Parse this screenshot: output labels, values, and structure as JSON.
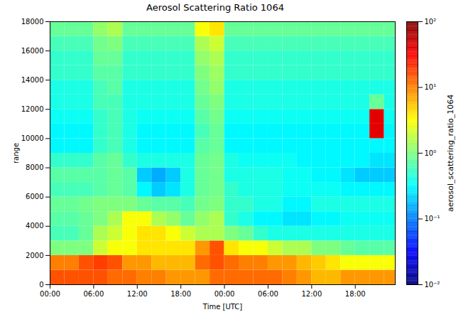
{
  "chart_data": {
    "type": "heatmap",
    "title": "Aerosol Scattering Ratio 1064",
    "x_label": "Time [UTC]",
    "y_label": "range",
    "xlim": [
      0,
      47.5
    ],
    "xticks": [
      {
        "value": 0,
        "label": "00:00"
      },
      {
        "value": 6,
        "label": "06:00"
      },
      {
        "value": 12,
        "label": "12:00"
      },
      {
        "value": 18,
        "label": "18:00"
      },
      {
        "value": 24,
        "label": "00:00"
      },
      {
        "value": 30,
        "label": "06:00"
      },
      {
        "value": 36,
        "label": "12:00"
      },
      {
        "value": 42,
        "label": "18:00"
      }
    ],
    "ylim": [
      0,
      18000
    ],
    "yticks": [
      0,
      2000,
      4000,
      6000,
      8000,
      10000,
      12000,
      14000,
      16000,
      18000
    ],
    "x_bins": [
      0,
      2,
      4,
      6,
      8,
      10,
      12,
      14,
      16,
      18,
      20,
      22,
      24,
      26,
      28,
      30,
      32,
      34,
      36,
      38,
      40,
      42,
      44,
      46,
      48
    ],
    "y_bins": [
      0,
      1000,
      2000,
      3000,
      4000,
      5000,
      6000,
      7000,
      8000,
      9000,
      10000,
      11000,
      12000,
      13000,
      14000,
      15000,
      16000,
      17000,
      18000
    ],
    "values": [
      [
        15,
        15,
        15,
        15,
        12,
        12,
        10,
        10,
        8,
        8,
        8,
        12,
        12,
        12,
        12,
        12,
        10,
        8,
        6,
        6,
        8,
        8,
        8,
        8
      ],
      [
        10,
        10,
        15,
        18,
        15,
        8,
        8,
        6,
        6,
        6,
        12,
        15,
        12,
        10,
        10,
        8,
        8,
        6,
        5,
        4,
        3,
        3,
        3,
        3
      ],
      [
        1,
        1,
        1,
        2,
        3,
        3,
        4,
        4,
        4,
        4,
        8,
        15,
        4,
        3,
        3,
        2,
        1.5,
        1.5,
        1,
        1,
        0.8,
        0.7,
        0.7,
        0.7
      ],
      [
        0.6,
        0.6,
        0.8,
        1.5,
        2,
        3,
        4,
        4,
        3,
        2,
        1.5,
        1.5,
        1,
        0.8,
        0.5,
        0.4,
        0.4,
        0.4,
        0.4,
        0.4,
        0.4,
        0.4,
        0.4,
        0.4
      ],
      [
        0.7,
        0.7,
        0.8,
        1,
        1.5,
        3,
        3,
        1.5,
        1.2,
        0.8,
        1.2,
        1.5,
        0.5,
        0.4,
        0.3,
        0.3,
        0.25,
        0.25,
        0.3,
        0.3,
        0.35,
        0.35,
        0.35,
        0.35
      ],
      [
        0.8,
        0.8,
        0.9,
        1,
        1,
        1,
        0.8,
        0.7,
        0.7,
        0.6,
        0.9,
        1,
        0.5,
        0.5,
        0.4,
        0.4,
        0.3,
        0.3,
        0.4,
        0.4,
        0.4,
        0.4,
        0.4,
        0.4
      ],
      [
        0.6,
        0.6,
        0.6,
        0.7,
        0.8,
        0.7,
        0.3,
        0.2,
        0.25,
        0.4,
        0.8,
        0.9,
        0.5,
        0.4,
        0.4,
        0.4,
        0.35,
        0.35,
        0.35,
        0.35,
        0.3,
        0.3,
        0.3,
        0.3
      ],
      [
        0.7,
        0.7,
        0.7,
        0.7,
        0.8,
        0.7,
        0.2,
        0.15,
        0.2,
        0.4,
        0.8,
        0.9,
        0.4,
        0.4,
        0.4,
        0.4,
        0.35,
        0.35,
        0.3,
        0.3,
        0.25,
        0.2,
        0.2,
        0.2
      ],
      [
        0.5,
        0.5,
        0.5,
        0.7,
        0.8,
        0.5,
        0.4,
        0.4,
        0.4,
        0.4,
        0.8,
        0.9,
        0.4,
        0.35,
        0.35,
        0.35,
        0.35,
        0.3,
        0.3,
        0.3,
        0.3,
        0.3,
        0.25,
        0.25
      ],
      [
        0.3,
        0.3,
        0.3,
        0.5,
        0.6,
        0.4,
        0.3,
        0.3,
        0.3,
        0.3,
        0.7,
        0.8,
        0.3,
        0.3,
        0.3,
        0.3,
        0.3,
        0.3,
        0.3,
        0.3,
        0.3,
        0.3,
        0.3,
        0.3
      ],
      [
        0.3,
        0.3,
        0.3,
        0.5,
        0.6,
        0.4,
        0.3,
        0.3,
        0.3,
        0.3,
        0.6,
        0.8,
        0.3,
        0.3,
        0.3,
        0.3,
        0.3,
        0.3,
        0.3,
        0.3,
        0.3,
        0.3,
        40,
        0.3
      ],
      [
        0.35,
        0.35,
        0.35,
        0.5,
        0.6,
        0.4,
        0.35,
        0.35,
        0.35,
        0.35,
        0.7,
        0.9,
        0.35,
        0.35,
        0.35,
        0.35,
        0.35,
        0.35,
        0.35,
        0.35,
        0.35,
        0.35,
        40,
        0.35
      ],
      [
        0.4,
        0.4,
        0.4,
        0.6,
        0.6,
        0.4,
        0.4,
        0.4,
        0.4,
        0.4,
        0.8,
        1,
        0.4,
        0.4,
        0.4,
        0.4,
        0.4,
        0.4,
        0.4,
        0.4,
        0.4,
        0.4,
        0.8,
        0.4
      ],
      [
        0.4,
        0.4,
        0.4,
        0.6,
        0.7,
        0.4,
        0.4,
        0.4,
        0.4,
        0.4,
        0.9,
        1.2,
        0.4,
        0.4,
        0.4,
        0.4,
        0.4,
        0.4,
        0.4,
        0.4,
        0.4,
        0.4,
        0.4,
        0.4
      ],
      [
        0.5,
        0.5,
        0.5,
        0.7,
        0.7,
        0.5,
        0.5,
        0.5,
        0.5,
        0.5,
        1,
        1.3,
        0.5,
        0.5,
        0.5,
        0.5,
        0.5,
        0.5,
        0.5,
        0.5,
        0.5,
        0.5,
        0.5,
        0.5
      ],
      [
        0.5,
        0.5,
        0.5,
        0.8,
        0.8,
        0.5,
        0.5,
        0.5,
        0.5,
        0.5,
        1.2,
        1.5,
        0.5,
        0.5,
        0.5,
        0.5,
        0.5,
        0.5,
        0.5,
        0.5,
        0.5,
        0.5,
        0.5,
        0.5
      ],
      [
        0.6,
        0.6,
        0.6,
        0.9,
        1,
        0.6,
        0.6,
        0.6,
        0.6,
        0.6,
        1.5,
        2,
        0.6,
        0.6,
        0.6,
        0.6,
        0.6,
        0.6,
        0.6,
        0.6,
        0.6,
        0.6,
        0.6,
        0.6
      ],
      [
        0.8,
        0.8,
        0.8,
        1.2,
        1.5,
        0.8,
        0.8,
        0.8,
        0.8,
        0.8,
        3,
        4,
        0.8,
        0.8,
        0.8,
        0.8,
        0.8,
        0.8,
        0.8,
        0.8,
        0.8,
        0.8,
        0.8,
        0.8
      ]
    ],
    "colorbar": {
      "label": "aerosol_scattering_ratio_1064",
      "range": [
        0.01,
        100
      ],
      "log": true,
      "ticks": [
        {
          "value": 0.01,
          "label": "10⁻²"
        },
        {
          "value": 0.1,
          "label": "10⁻¹"
        },
        {
          "value": 1,
          "label": "10⁰"
        },
        {
          "value": 10,
          "label": "10¹"
        },
        {
          "value": 100,
          "label": "10²"
        }
      ]
    }
  }
}
